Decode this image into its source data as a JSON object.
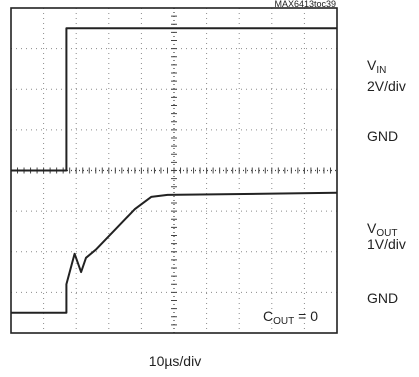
{
  "chart_data": {
    "type": "line",
    "figure_id": "MAX6413toc39",
    "xlabel": "10µs/div",
    "grid": true,
    "grid_divisions": {
      "x": 10,
      "y": 8
    },
    "traces": [
      {
        "name": "VIN",
        "label_main": "V",
        "label_sub": "IN",
        "scale": "2V/div",
        "ground_label": "GND",
        "ground_div": 4,
        "points_div": [
          [
            0,
            4
          ],
          [
            1.7,
            4
          ],
          [
            1.7,
            7.5
          ],
          [
            10,
            7.5
          ]
        ]
      },
      {
        "name": "VOUT",
        "label_main": "V",
        "label_sub": "OUT",
        "scale": "1V/div",
        "ground_label": "GND",
        "ground_div": 0.5,
        "points_div": [
          [
            0,
            0.5
          ],
          [
            1.7,
            0.5
          ],
          [
            1.7,
            1.2
          ],
          [
            1.95,
            1.95
          ],
          [
            2.15,
            1.5
          ],
          [
            2.3,
            1.85
          ],
          [
            2.6,
            2.05
          ],
          [
            3.2,
            2.55
          ],
          [
            3.8,
            3.05
          ],
          [
            4.3,
            3.35
          ],
          [
            4.8,
            3.4
          ],
          [
            10,
            3.45
          ]
        ]
      }
    ],
    "annotation": {
      "main": "C",
      "sub": "OUT",
      "rest": " = 0"
    }
  }
}
